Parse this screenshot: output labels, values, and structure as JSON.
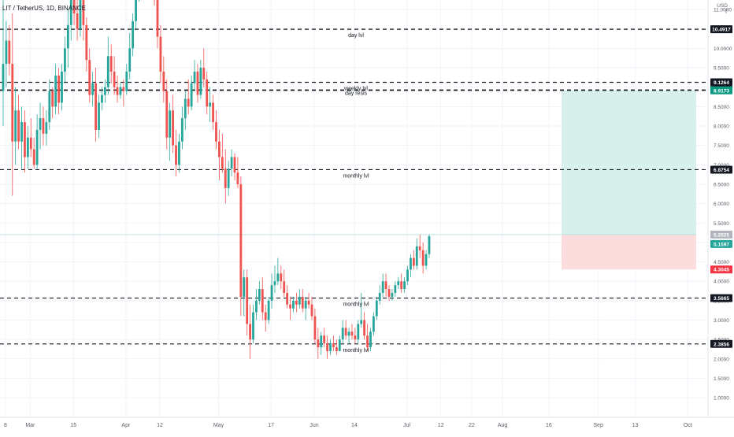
{
  "header": {
    "symbol": "LIT / TetherUS, 1D, BINANCE",
    "currency_line1": "USD",
    "currency_line2": "T"
  },
  "colors": {
    "up": "#26a69a",
    "down": "#ef5350",
    "target_zone": "#d7f0ec",
    "stop_zone": "#fcdcdc",
    "dashed_line": "#131722",
    "grid": "#f0f3fa"
  },
  "chart_data": {
    "type": "candlestick",
    "title": "LIT / TetherUS, 1D, BINANCE",
    "ylim": [
      0.8,
      12.0
    ],
    "y_ticks": [
      1.0,
      1.5,
      2.0,
      2.5,
      3.0,
      3.5,
      4.0,
      4.5,
      5.0,
      5.5,
      6.0,
      6.5,
      7.0,
      7.5,
      8.0,
      8.5,
      9.0,
      9.5,
      10.0,
      10.5,
      11.0,
      11.5
    ],
    "y_tick_labels": [
      "1.0000",
      "1.5000",
      "2.0000",
      "2.5000",
      "3.0000",
      "3.5000",
      "4.0000",
      "4.5000",
      "5.0000",
      "5.5000",
      "6.0000",
      "6.5000",
      "7.0000",
      "7.5000",
      "8.0000",
      "8.5000",
      "9.0000",
      "9.5000",
      "10.0000",
      "10.5000",
      "11.0000",
      "11.5000"
    ],
    "x_ticks": [
      {
        "label": "8",
        "day": 0
      },
      {
        "label": "Mar",
        "day": 8
      },
      {
        "label": "15",
        "day": 22
      },
      {
        "label": "Apr",
        "day": 39
      },
      {
        "label": "12",
        "day": 50
      },
      {
        "label": "May",
        "day": 69
      },
      {
        "label": "17",
        "day": 86
      },
      {
        "label": "Jun",
        "day": 100
      },
      {
        "label": "14",
        "day": 113
      },
      {
        "label": "Jul",
        "day": 130
      },
      {
        "label": "12",
        "day": 141
      },
      {
        "label": "22",
        "day": 151
      },
      {
        "label": "Aug",
        "day": 161
      },
      {
        "label": "16",
        "day": 176
      },
      {
        "label": "Sep",
        "day": 192
      },
      {
        "label": "13",
        "day": 204
      },
      {
        "label": "Oct",
        "day": 221
      }
    ],
    "x_day_range": [
      0,
      228
    ],
    "candles": [
      {
        "o": 8.9,
        "h": 11.8,
        "l": 8.0,
        "c": 9.6
      },
      {
        "o": 9.6,
        "h": 10.7,
        "l": 9.0,
        "c": 10.2
      },
      {
        "o": 10.2,
        "h": 10.6,
        "l": 9.3,
        "c": 9.6
      },
      {
        "o": 9.6,
        "h": 10.9,
        "l": 6.2,
        "c": 7.6
      },
      {
        "o": 7.6,
        "h": 9.0,
        "l": 7.0,
        "c": 8.4
      },
      {
        "o": 8.4,
        "h": 8.8,
        "l": 7.4,
        "c": 7.6
      },
      {
        "o": 7.6,
        "h": 8.5,
        "l": 6.9,
        "c": 8.1
      },
      {
        "o": 8.1,
        "h": 8.4,
        "l": 6.8,
        "c": 7.2
      },
      {
        "o": 7.2,
        "h": 8.0,
        "l": 6.9,
        "c": 7.7
      },
      {
        "o": 7.7,
        "h": 8.2,
        "l": 7.2,
        "c": 7.4
      },
      {
        "o": 7.4,
        "h": 7.7,
        "l": 6.9,
        "c": 7.0
      },
      {
        "o": 7.0,
        "h": 8.3,
        "l": 6.9,
        "c": 7.9
      },
      {
        "o": 7.9,
        "h": 8.6,
        "l": 7.4,
        "c": 8.2
      },
      {
        "o": 8.2,
        "h": 8.5,
        "l": 7.5,
        "c": 7.8
      },
      {
        "o": 7.8,
        "h": 8.4,
        "l": 7.5,
        "c": 8.1
      },
      {
        "o": 8.1,
        "h": 9.2,
        "l": 7.9,
        "c": 8.9
      },
      {
        "o": 8.9,
        "h": 9.0,
        "l": 8.2,
        "c": 8.5
      },
      {
        "o": 8.5,
        "h": 9.6,
        "l": 8.3,
        "c": 9.3
      },
      {
        "o": 9.3,
        "h": 9.5,
        "l": 8.3,
        "c": 8.6
      },
      {
        "o": 8.6,
        "h": 9.6,
        "l": 8.4,
        "c": 9.4
      },
      {
        "o": 9.4,
        "h": 10.3,
        "l": 9.1,
        "c": 10.0
      },
      {
        "o": 10.0,
        "h": 11.0,
        "l": 9.5,
        "c": 10.6
      },
      {
        "o": 10.6,
        "h": 11.7,
        "l": 10.2,
        "c": 11.4
      },
      {
        "o": 11.4,
        "h": 11.6,
        "l": 10.6,
        "c": 10.9
      },
      {
        "o": 10.9,
        "h": 11.4,
        "l": 10.2,
        "c": 10.5
      },
      {
        "o": 10.5,
        "h": 11.8,
        "l": 10.3,
        "c": 11.5
      },
      {
        "o": 11.5,
        "h": 11.8,
        "l": 10.2,
        "c": 10.6
      },
      {
        "o": 10.6,
        "h": 10.8,
        "l": 9.4,
        "c": 9.7
      },
      {
        "o": 9.7,
        "h": 10.0,
        "l": 8.6,
        "c": 8.8
      },
      {
        "o": 8.8,
        "h": 9.4,
        "l": 8.5,
        "c": 9.1
      },
      {
        "o": 9.1,
        "h": 9.5,
        "l": 7.6,
        "c": 7.9
      },
      {
        "o": 7.9,
        "h": 8.8,
        "l": 7.7,
        "c": 8.6
      },
      {
        "o": 8.6,
        "h": 9.0,
        "l": 8.4,
        "c": 8.8
      },
      {
        "o": 8.8,
        "h": 9.2,
        "l": 8.6,
        "c": 9.0
      },
      {
        "o": 9.0,
        "h": 10.3,
        "l": 8.8,
        "c": 9.8
      },
      {
        "o": 9.8,
        "h": 10.1,
        "l": 9.1,
        "c": 9.4
      },
      {
        "o": 9.4,
        "h": 9.8,
        "l": 8.8,
        "c": 9.0
      },
      {
        "o": 9.0,
        "h": 9.3,
        "l": 8.6,
        "c": 8.8
      },
      {
        "o": 8.8,
        "h": 9.1,
        "l": 8.7,
        "c": 9.0
      },
      {
        "o": 9.0,
        "h": 9.2,
        "l": 8.5,
        "c": 8.9
      },
      {
        "o": 8.9,
        "h": 9.6,
        "l": 8.8,
        "c": 9.4
      },
      {
        "o": 9.4,
        "h": 10.4,
        "l": 9.2,
        "c": 10.0
      },
      {
        "o": 10.0,
        "h": 10.9,
        "l": 9.8,
        "c": 10.7
      },
      {
        "o": 10.7,
        "h": 11.8,
        "l": 10.5,
        "c": 11.6
      },
      {
        "o": 11.6,
        "h": 11.9,
        "l": 11.2,
        "c": 11.7
      },
      {
        "o": 11.7,
        "h": 11.9,
        "l": 11.3,
        "c": 11.6
      },
      {
        "o": 11.6,
        "h": 11.8,
        "l": 11.4,
        "c": 11.7
      },
      {
        "o": 11.7,
        "h": 11.8,
        "l": 11.3,
        "c": 11.5
      },
      {
        "o": 11.5,
        "h": 11.9,
        "l": 11.3,
        "c": 11.8
      },
      {
        "o": 11.8,
        "h": 11.9,
        "l": 11.1,
        "c": 11.4
      },
      {
        "o": 11.4,
        "h": 11.8,
        "l": 10.0,
        "c": 10.3
      },
      {
        "o": 10.3,
        "h": 10.6,
        "l": 9.1,
        "c": 9.4
      },
      {
        "o": 9.4,
        "h": 9.8,
        "l": 8.6,
        "c": 8.9
      },
      {
        "o": 8.9,
        "h": 9.2,
        "l": 7.4,
        "c": 7.7
      },
      {
        "o": 7.7,
        "h": 8.6,
        "l": 7.1,
        "c": 8.4
      },
      {
        "o": 8.4,
        "h": 8.8,
        "l": 7.3,
        "c": 7.5
      },
      {
        "o": 7.5,
        "h": 7.9,
        "l": 6.7,
        "c": 7.0
      },
      {
        "o": 7.0,
        "h": 7.8,
        "l": 6.8,
        "c": 7.6
      },
      {
        "o": 7.6,
        "h": 8.5,
        "l": 7.4,
        "c": 8.2
      },
      {
        "o": 8.2,
        "h": 8.9,
        "l": 7.9,
        "c": 8.7
      },
      {
        "o": 8.7,
        "h": 9.2,
        "l": 8.3,
        "c": 8.5
      },
      {
        "o": 8.5,
        "h": 9.3,
        "l": 8.4,
        "c": 9.1
      },
      {
        "o": 9.1,
        "h": 9.7,
        "l": 8.9,
        "c": 9.4
      },
      {
        "o": 9.4,
        "h": 9.6,
        "l": 8.6,
        "c": 8.8
      },
      {
        "o": 8.8,
        "h": 9.7,
        "l": 8.7,
        "c": 9.5
      },
      {
        "o": 9.5,
        "h": 10.0,
        "l": 9.0,
        "c": 9.2
      },
      {
        "o": 9.2,
        "h": 9.4,
        "l": 8.3,
        "c": 8.5
      },
      {
        "o": 8.5,
        "h": 9.0,
        "l": 8.1,
        "c": 8.6
      },
      {
        "o": 8.6,
        "h": 8.8,
        "l": 7.9,
        "c": 8.1
      },
      {
        "o": 8.1,
        "h": 8.4,
        "l": 7.4,
        "c": 7.6
      },
      {
        "o": 7.6,
        "h": 7.9,
        "l": 6.6,
        "c": 7.2
      },
      {
        "o": 7.2,
        "h": 7.8,
        "l": 6.8,
        "c": 6.9
      },
      {
        "o": 6.9,
        "h": 7.4,
        "l": 6.0,
        "c": 6.4
      },
      {
        "o": 6.4,
        "h": 7.1,
        "l": 6.2,
        "c": 6.9
      },
      {
        "o": 6.9,
        "h": 7.4,
        "l": 6.7,
        "c": 7.2
      },
      {
        "o": 7.2,
        "h": 7.3,
        "l": 6.6,
        "c": 6.8
      },
      {
        "o": 6.8,
        "h": 7.2,
        "l": 6.4,
        "c": 6.5
      },
      {
        "o": 6.5,
        "h": 6.7,
        "l": 3.1,
        "c": 3.6
      },
      {
        "o": 3.6,
        "h": 4.3,
        "l": 3.1,
        "c": 4.1
      },
      {
        "o": 4.1,
        "h": 4.3,
        "l": 2.6,
        "c": 2.9
      },
      {
        "o": 2.9,
        "h": 3.4,
        "l": 2.0,
        "c": 2.5
      },
      {
        "o": 2.5,
        "h": 3.4,
        "l": 2.4,
        "c": 3.2
      },
      {
        "o": 3.2,
        "h": 3.8,
        "l": 3.0,
        "c": 3.5
      },
      {
        "o": 3.5,
        "h": 4.0,
        "l": 3.4,
        "c": 3.8
      },
      {
        "o": 3.8,
        "h": 4.1,
        "l": 3.0,
        "c": 3.2
      },
      {
        "o": 3.2,
        "h": 3.4,
        "l": 2.7,
        "c": 3.0
      },
      {
        "o": 3.0,
        "h": 3.6,
        "l": 2.9,
        "c": 3.5
      },
      {
        "o": 3.5,
        "h": 4.2,
        "l": 3.3,
        "c": 3.9
      },
      {
        "o": 3.9,
        "h": 4.4,
        "l": 3.7,
        "c": 4.0
      },
      {
        "o": 4.0,
        "h": 4.6,
        "l": 3.9,
        "c": 4.2
      },
      {
        "o": 4.2,
        "h": 4.4,
        "l": 3.8,
        "c": 4.0
      },
      {
        "o": 4.0,
        "h": 4.3,
        "l": 3.6,
        "c": 3.7
      },
      {
        "o": 3.7,
        "h": 3.9,
        "l": 3.3,
        "c": 3.4
      },
      {
        "o": 3.4,
        "h": 3.6,
        "l": 3.0,
        "c": 3.3
      },
      {
        "o": 3.3,
        "h": 3.6,
        "l": 3.2,
        "c": 3.5
      },
      {
        "o": 3.5,
        "h": 3.7,
        "l": 3.2,
        "c": 3.4
      },
      {
        "o": 3.4,
        "h": 3.8,
        "l": 3.3,
        "c": 3.6
      },
      {
        "o": 3.6,
        "h": 3.8,
        "l": 3.2,
        "c": 3.3
      },
      {
        "o": 3.3,
        "h": 3.6,
        "l": 3.0,
        "c": 3.5
      },
      {
        "o": 3.5,
        "h": 3.7,
        "l": 3.3,
        "c": 3.4
      },
      {
        "o": 3.4,
        "h": 3.6,
        "l": 3.0,
        "c": 3.1
      },
      {
        "o": 3.1,
        "h": 3.3,
        "l": 2.4,
        "c": 2.5
      },
      {
        "o": 2.5,
        "h": 2.8,
        "l": 2.0,
        "c": 2.3
      },
      {
        "o": 2.3,
        "h": 2.7,
        "l": 2.1,
        "c": 2.6
      },
      {
        "o": 2.6,
        "h": 2.8,
        "l": 2.3,
        "c": 2.4
      },
      {
        "o": 2.4,
        "h": 2.6,
        "l": 2.0,
        "c": 2.2
      },
      {
        "o": 2.2,
        "h": 2.5,
        "l": 2.1,
        "c": 2.4
      },
      {
        "o": 2.4,
        "h": 2.6,
        "l": 2.2,
        "c": 2.3
      },
      {
        "o": 2.3,
        "h": 2.5,
        "l": 2.1,
        "c": 2.2
      },
      {
        "o": 2.2,
        "h": 2.6,
        "l": 2.2,
        "c": 2.5
      },
      {
        "o": 2.5,
        "h": 3.0,
        "l": 2.4,
        "c": 2.8
      },
      {
        "o": 2.8,
        "h": 3.0,
        "l": 2.5,
        "c": 2.6
      },
      {
        "o": 2.6,
        "h": 2.8,
        "l": 2.4,
        "c": 2.7
      },
      {
        "o": 2.7,
        "h": 2.9,
        "l": 2.5,
        "c": 2.6
      },
      {
        "o": 2.6,
        "h": 2.8,
        "l": 2.4,
        "c": 2.5
      },
      {
        "o": 2.5,
        "h": 3.0,
        "l": 2.4,
        "c": 2.9
      },
      {
        "o": 2.9,
        "h": 3.7,
        "l": 2.8,
        "c": 3.0
      },
      {
        "o": 3.0,
        "h": 3.2,
        "l": 2.5,
        "c": 2.6
      },
      {
        "o": 2.6,
        "h": 2.9,
        "l": 2.2,
        "c": 2.3
      },
      {
        "o": 2.3,
        "h": 2.8,
        "l": 2.2,
        "c": 2.7
      },
      {
        "o": 2.7,
        "h": 3.2,
        "l": 2.6,
        "c": 3.1
      },
      {
        "o": 3.1,
        "h": 3.6,
        "l": 3.0,
        "c": 3.5
      },
      {
        "o": 3.5,
        "h": 3.9,
        "l": 3.4,
        "c": 3.7
      },
      {
        "o": 3.7,
        "h": 4.2,
        "l": 3.6,
        "c": 4.0
      },
      {
        "o": 4.0,
        "h": 4.2,
        "l": 3.6,
        "c": 3.8
      },
      {
        "o": 3.8,
        "h": 3.9,
        "l": 3.5,
        "c": 3.6
      },
      {
        "o": 3.6,
        "h": 3.8,
        "l": 3.5,
        "c": 3.7
      },
      {
        "o": 3.7,
        "h": 4.0,
        "l": 3.6,
        "c": 3.9
      },
      {
        "o": 3.9,
        "h": 4.1,
        "l": 3.8,
        "c": 4.0
      },
      {
        "o": 4.0,
        "h": 4.2,
        "l": 3.7,
        "c": 3.8
      },
      {
        "o": 3.8,
        "h": 4.1,
        "l": 3.7,
        "c": 4.0
      },
      {
        "o": 4.0,
        "h": 4.4,
        "l": 3.9,
        "c": 4.3
      },
      {
        "o": 4.3,
        "h": 4.7,
        "l": 4.1,
        "c": 4.6
      },
      {
        "o": 4.6,
        "h": 4.8,
        "l": 4.3,
        "c": 4.4
      },
      {
        "o": 4.4,
        "h": 5.1,
        "l": 4.3,
        "c": 4.9
      },
      {
        "o": 4.9,
        "h": 5.2,
        "l": 4.6,
        "c": 4.8
      },
      {
        "o": 4.8,
        "h": 5.0,
        "l": 4.2,
        "c": 4.4
      },
      {
        "o": 4.4,
        "h": 4.8,
        "l": 4.3,
        "c": 4.7
      },
      {
        "o": 4.7,
        "h": 5.2,
        "l": 4.6,
        "c": 5.16
      }
    ],
    "level_lines": [
      {
        "price": 10.4917,
        "label": "day lvl",
        "tag": "10.4917"
      },
      {
        "price": 9.1264,
        "label": "weekly lvl",
        "tag": "9.1264"
      },
      {
        "price": 8.9296,
        "label": "",
        "tag": "8.9296"
      },
      {
        "price": 6.8754,
        "label": "monthly lvl",
        "tag": "6.8754"
      },
      {
        "price": 3.5665,
        "label": "monthly lvl",
        "tag": "3.5665"
      },
      {
        "price": 2.3856,
        "label": "monthly lvl",
        "tag": "2.3856"
      }
    ],
    "annotations": [
      {
        "text": "weekly lvl",
        "price": 11.9
      },
      {
        "text": "day resis",
        "price": 8.8
      }
    ],
    "position": {
      "entry": 5.2025,
      "entry_tag": "5.2025",
      "current": 5.1597,
      "current_tag": "5.1597",
      "target": 8.9173,
      "target_tag": "8.9173",
      "stop": 4.3045,
      "stop_tag": "4.3045"
    }
  }
}
